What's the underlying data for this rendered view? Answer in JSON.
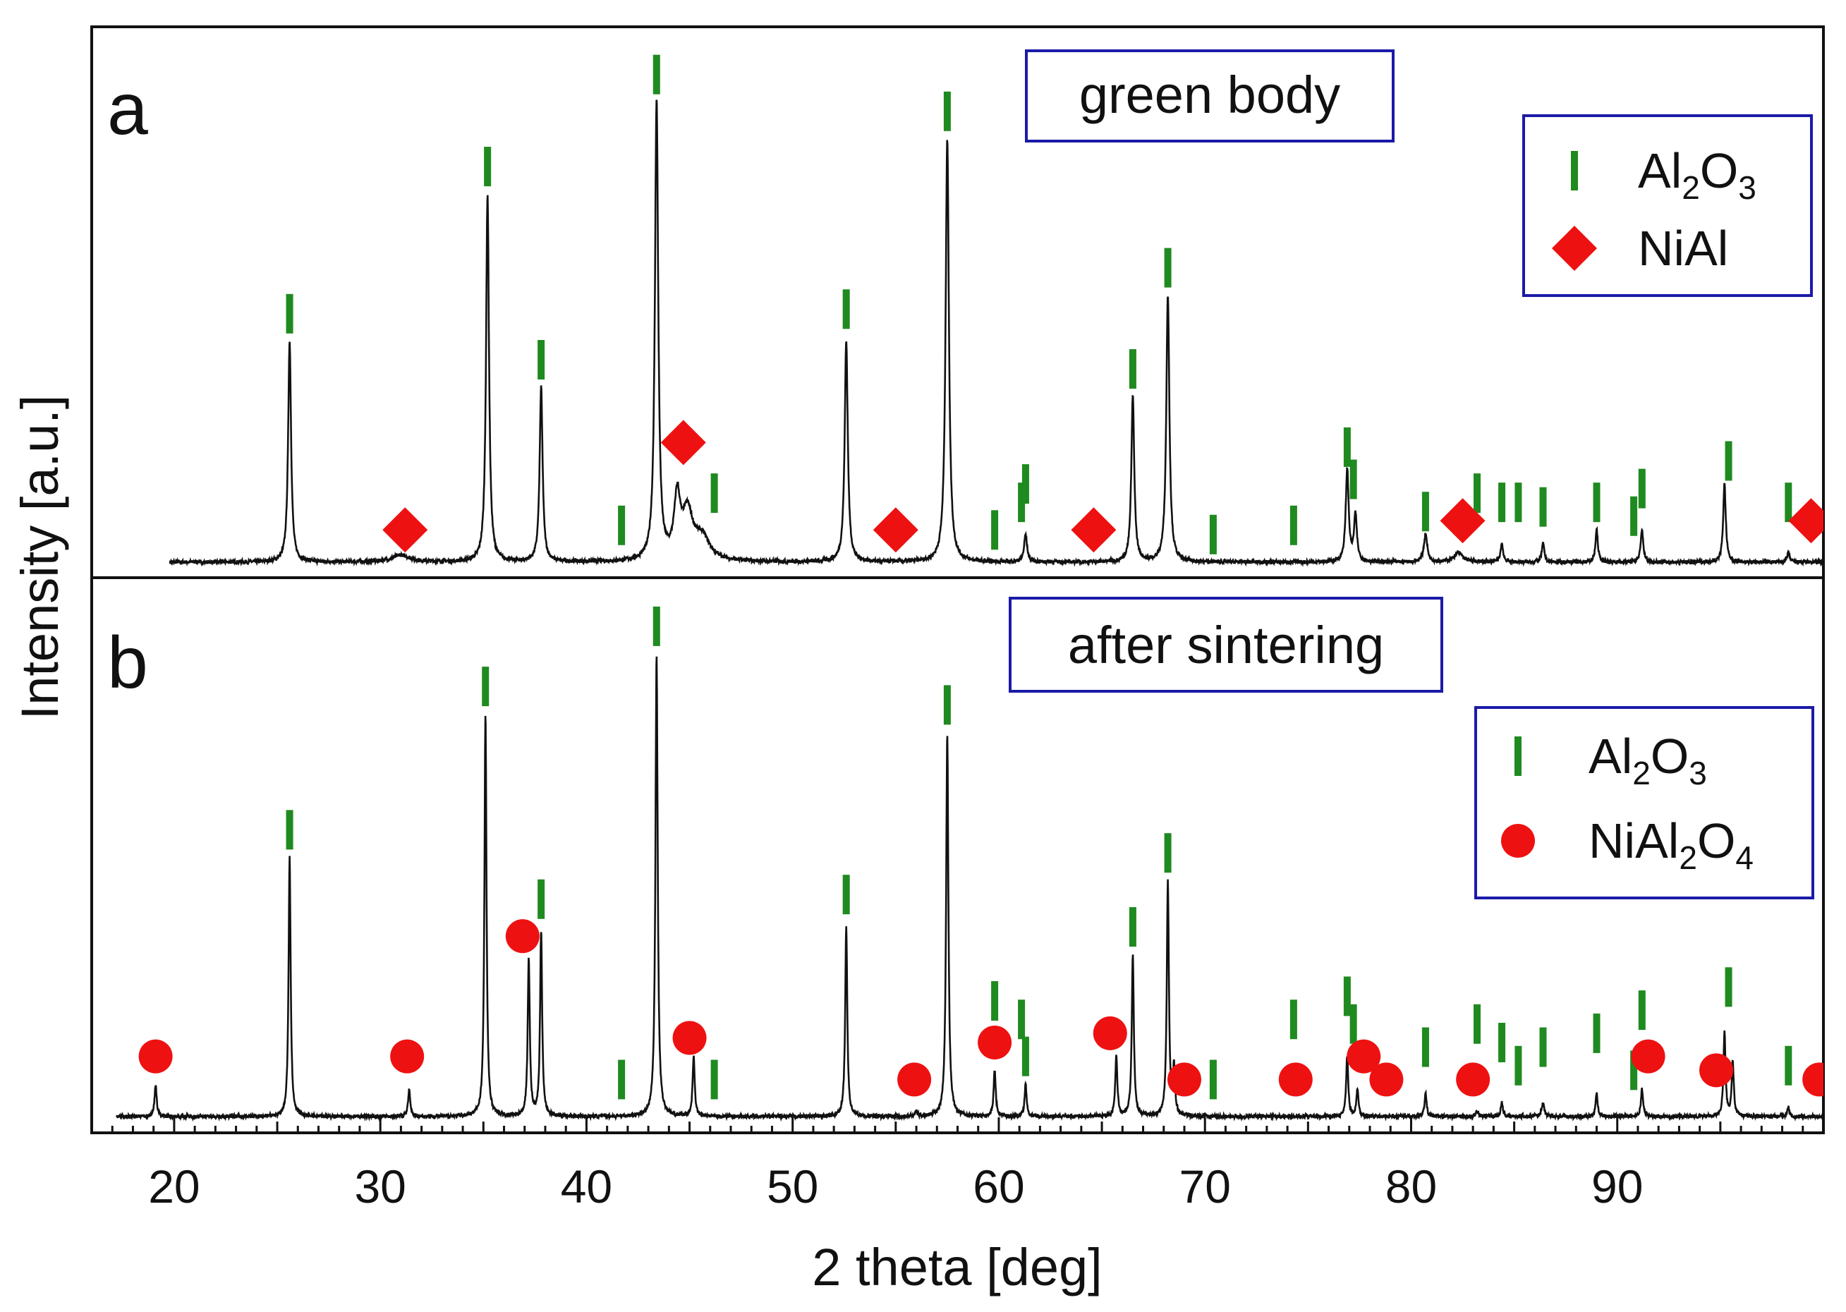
{
  "chart_data": {
    "type": "line",
    "xlabel": "2 theta [deg]",
    "ylabel": "Intensity [a.u.]",
    "xlim": [
      16,
      100
    ],
    "x_ticks": [
      "20",
      "30",
      "40",
      "50",
      "60",
      "70",
      "80",
      "90"
    ],
    "colors": {
      "trace": "#111111",
      "al2o3_marker": "#1f8a1f",
      "second_phase_marker": "#ee1111",
      "box": "#1a1aa8"
    },
    "panels": [
      {
        "label": "a",
        "title": "green body",
        "legend": [
          {
            "symbol": "tick",
            "text": "Al",
            "sub1": "2",
            "text2": "O",
            "sub2": "3"
          },
          {
            "symbol": "diamond",
            "text": "NiAl",
            "sub1": "",
            "text2": "",
            "sub2": ""
          }
        ],
        "ylim": [
          0,
          1.15
        ],
        "baseline": 0.02,
        "peaks": [
          [
            25.6,
            0.48,
            0.17
          ],
          [
            31.0,
            0.015,
            1.0
          ],
          [
            35.2,
            0.8,
            0.17
          ],
          [
            37.8,
            0.38,
            0.17
          ],
          [
            43.4,
            1.0,
            0.19
          ],
          [
            44.4,
            0.13,
            0.35
          ],
          [
            44.9,
            0.1,
            0.6
          ],
          [
            45.6,
            0.05,
            0.9
          ],
          [
            52.6,
            0.48,
            0.18
          ],
          [
            57.5,
            0.92,
            0.19
          ],
          [
            61.3,
            0.06,
            0.17
          ],
          [
            66.5,
            0.36,
            0.17
          ],
          [
            68.2,
            0.58,
            0.18
          ],
          [
            76.9,
            0.2,
            0.17
          ],
          [
            77.3,
            0.1,
            0.17
          ],
          [
            80.7,
            0.06,
            0.2
          ],
          [
            82.3,
            0.02,
            0.5
          ],
          [
            84.4,
            0.04,
            0.15
          ],
          [
            86.4,
            0.04,
            0.15
          ],
          [
            89.0,
            0.07,
            0.14
          ],
          [
            91.2,
            0.07,
            0.15
          ],
          [
            95.2,
            0.17,
            0.15
          ],
          [
            98.3,
            0.02,
            0.15
          ]
        ],
        "ref_ticks": [
          {
            "x": 25.6,
            "y": 0.56
          },
          {
            "x": 35.2,
            "y": 0.88
          },
          {
            "x": 37.8,
            "y": 0.46
          },
          {
            "x": 41.7,
            "y": 0.1
          },
          {
            "x": 43.4,
            "y": 1.08
          },
          {
            "x": 46.2,
            "y": 0.17
          },
          {
            "x": 52.6,
            "y": 0.57
          },
          {
            "x": 57.5,
            "y": 1.0
          },
          {
            "x": 59.8,
            "y": 0.09
          },
          {
            "x": 61.1,
            "y": 0.15
          },
          {
            "x": 61.3,
            "y": 0.19
          },
          {
            "x": 66.5,
            "y": 0.44
          },
          {
            "x": 68.2,
            "y": 0.66
          },
          {
            "x": 70.4,
            "y": 0.08
          },
          {
            "x": 74.3,
            "y": 0.1
          },
          {
            "x": 76.9,
            "y": 0.27
          },
          {
            "x": 77.2,
            "y": 0.2
          },
          {
            "x": 80.7,
            "y": 0.13
          },
          {
            "x": 83.2,
            "y": 0.17
          },
          {
            "x": 84.4,
            "y": 0.15
          },
          {
            "x": 85.2,
            "y": 0.15
          },
          {
            "x": 86.4,
            "y": 0.14
          },
          {
            "x": 89.0,
            "y": 0.15
          },
          {
            "x": 90.8,
            "y": 0.12
          },
          {
            "x": 91.2,
            "y": 0.18
          },
          {
            "x": 95.4,
            "y": 0.24
          },
          {
            "x": 98.3,
            "y": 0.15
          }
        ],
        "markers": [
          {
            "x": 31.2,
            "y": 0.09
          },
          {
            "x": 44.7,
            "y": 0.28
          },
          {
            "x": 55.0,
            "y": 0.09
          },
          {
            "x": 64.6,
            "y": 0.09
          },
          {
            "x": 82.5,
            "y": 0.11
          },
          {
            "x": 99.4,
            "y": 0.11
          }
        ]
      },
      {
        "label": "b",
        "title": "after sintering",
        "legend": [
          {
            "symbol": "tick",
            "text": "Al",
            "sub1": "2",
            "text2": "O",
            "sub2": "3"
          },
          {
            "symbol": "circle",
            "text": "NiAl",
            "sub1": "2",
            "text2": "O",
            "sub2": "4"
          }
        ],
        "ylim": [
          0,
          1.15
        ],
        "baseline": 0.02,
        "peaks": [
          [
            19.1,
            0.07,
            0.12
          ],
          [
            25.6,
            0.56,
            0.12
          ],
          [
            31.4,
            0.06,
            0.12
          ],
          [
            35.1,
            0.87,
            0.12
          ],
          [
            37.2,
            0.34,
            0.12
          ],
          [
            37.8,
            0.4,
            0.12
          ],
          [
            43.4,
            1.0,
            0.13
          ],
          [
            45.2,
            0.13,
            0.12
          ],
          [
            52.6,
            0.41,
            0.12
          ],
          [
            56.0,
            0.01,
            0.12
          ],
          [
            57.5,
            0.83,
            0.13
          ],
          [
            59.8,
            0.1,
            0.12
          ],
          [
            61.3,
            0.07,
            0.12
          ],
          [
            65.7,
            0.13,
            0.12
          ],
          [
            66.5,
            0.35,
            0.12
          ],
          [
            68.2,
            0.51,
            0.12
          ],
          [
            68.5,
            0.1,
            0.12
          ],
          [
            76.9,
            0.13,
            0.12
          ],
          [
            77.4,
            0.06,
            0.12
          ],
          [
            80.7,
            0.05,
            0.12
          ],
          [
            83.2,
            0.01,
            0.15
          ],
          [
            84.4,
            0.03,
            0.12
          ],
          [
            86.4,
            0.03,
            0.15
          ],
          [
            89.0,
            0.05,
            0.12
          ],
          [
            91.2,
            0.06,
            0.12
          ],
          [
            95.2,
            0.18,
            0.12
          ],
          [
            95.6,
            0.12,
            0.12
          ],
          [
            98.3,
            0.02,
            0.12
          ]
        ],
        "ref_ticks": [
          {
            "x": 25.6,
            "y": 0.64
          },
          {
            "x": 35.1,
            "y": 0.95
          },
          {
            "x": 37.8,
            "y": 0.49
          },
          {
            "x": 41.7,
            "y": 0.1
          },
          {
            "x": 43.4,
            "y": 1.08
          },
          {
            "x": 46.2,
            "y": 0.1
          },
          {
            "x": 52.6,
            "y": 0.5
          },
          {
            "x": 57.5,
            "y": 0.91
          },
          {
            "x": 59.8,
            "y": 0.27
          },
          {
            "x": 61.1,
            "y": 0.23
          },
          {
            "x": 61.3,
            "y": 0.15
          },
          {
            "x": 66.5,
            "y": 0.43
          },
          {
            "x": 68.2,
            "y": 0.59
          },
          {
            "x": 70.4,
            "y": 0.1
          },
          {
            "x": 74.3,
            "y": 0.23
          },
          {
            "x": 76.9,
            "y": 0.28
          },
          {
            "x": 77.2,
            "y": 0.22
          },
          {
            "x": 80.7,
            "y": 0.17
          },
          {
            "x": 83.2,
            "y": 0.22
          },
          {
            "x": 84.4,
            "y": 0.18
          },
          {
            "x": 85.2,
            "y": 0.13
          },
          {
            "x": 86.4,
            "y": 0.17
          },
          {
            "x": 89.0,
            "y": 0.2
          },
          {
            "x": 90.8,
            "y": 0.12
          },
          {
            "x": 91.2,
            "y": 0.25
          },
          {
            "x": 95.4,
            "y": 0.3
          },
          {
            "x": 98.3,
            "y": 0.13
          }
        ],
        "markers": [
          {
            "x": 19.1,
            "y": 0.15
          },
          {
            "x": 31.3,
            "y": 0.15
          },
          {
            "x": 36.9,
            "y": 0.41
          },
          {
            "x": 45.0,
            "y": 0.19
          },
          {
            "x": 55.9,
            "y": 0.1
          },
          {
            "x": 59.8,
            "y": 0.18
          },
          {
            "x": 65.4,
            "y": 0.2
          },
          {
            "x": 69.0,
            "y": 0.1
          },
          {
            "x": 74.4,
            "y": 0.1
          },
          {
            "x": 77.7,
            "y": 0.15
          },
          {
            "x": 78.8,
            "y": 0.1
          },
          {
            "x": 83.0,
            "y": 0.1
          },
          {
            "x": 91.5,
            "y": 0.15
          },
          {
            "x": 94.8,
            "y": 0.12
          },
          {
            "x": 99.8,
            "y": 0.1
          }
        ]
      }
    ]
  }
}
